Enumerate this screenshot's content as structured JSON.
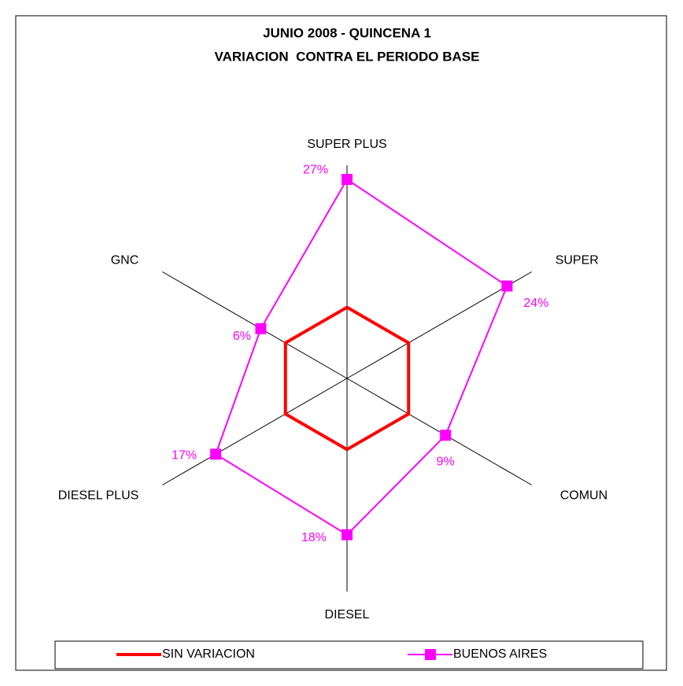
{
  "chart_data": {
    "type": "radar",
    "title": [
      "JUNIO 2008 - QUINCENA 1",
      "VARIACION  CONTRA EL PERIODO BASE"
    ],
    "categories": [
      "SUPER PLUS",
      "SUPER",
      "COMUN",
      "DIESEL",
      "DIESEL PLUS",
      "GNC"
    ],
    "rlim": [
      -15,
      30
    ],
    "series": [
      {
        "name": "SIN VARIACION",
        "color": "#ff0000",
        "values": [
          0,
          0,
          0,
          0,
          0,
          0
        ]
      },
      {
        "name": "BUENOS AIRES",
        "color": "#ff00ff",
        "marker": "square",
        "values": [
          27,
          24,
          9,
          18,
          17,
          6
        ],
        "value_labels": [
          "27%",
          "24%",
          "9%",
          "18%",
          "17%",
          "6%"
        ]
      }
    ],
    "legend": "bottom"
  }
}
